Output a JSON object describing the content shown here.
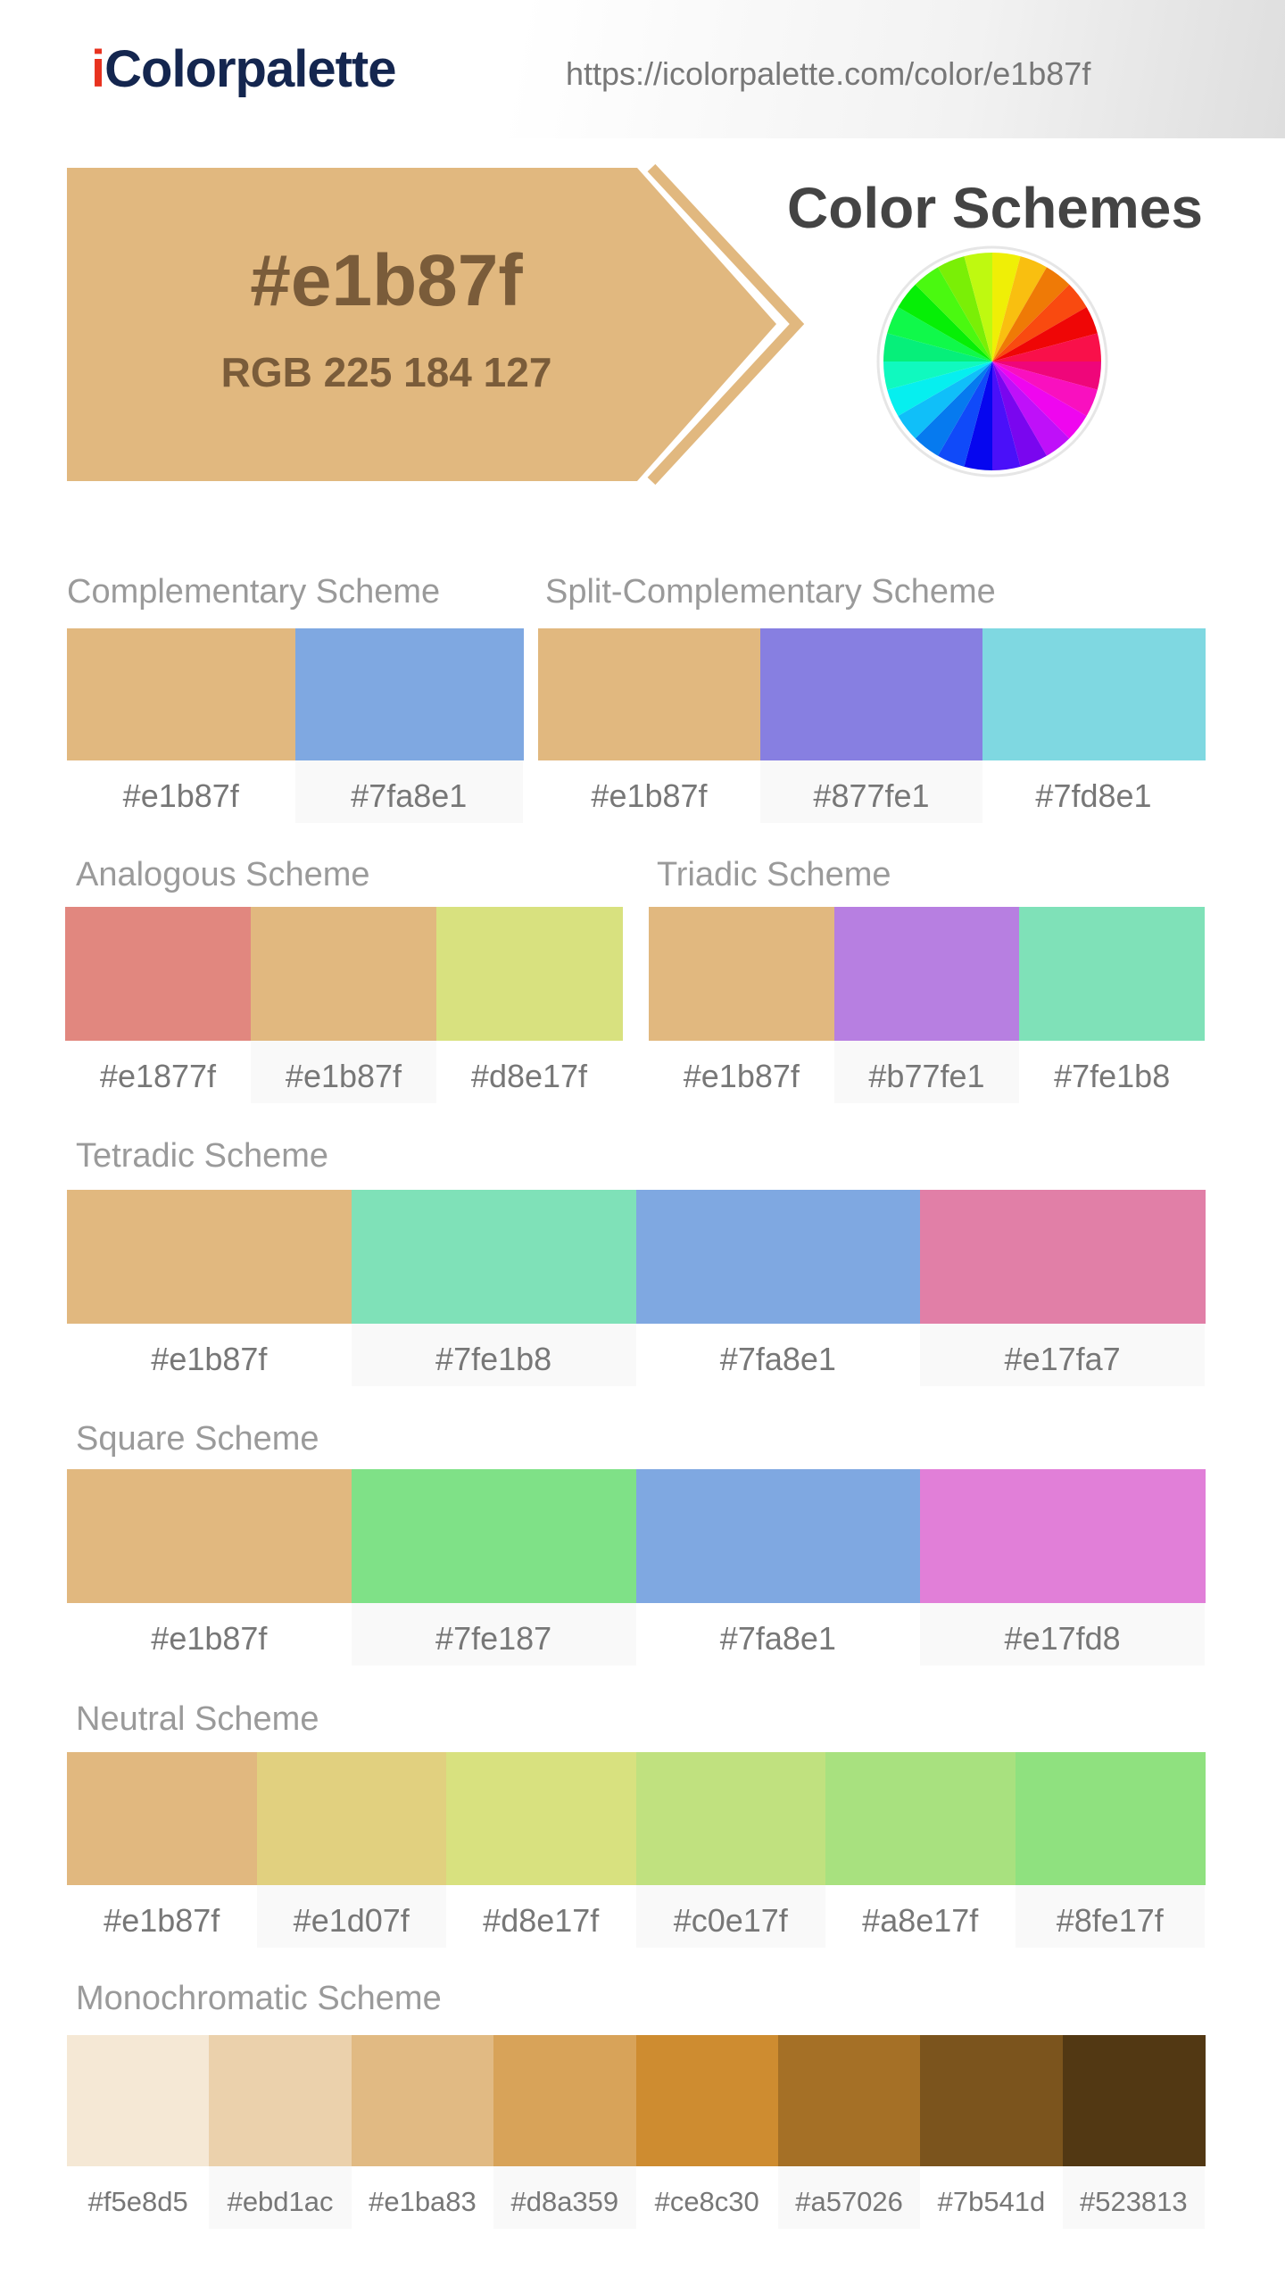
{
  "header": {
    "logo": "iColorpalette",
    "url": "https://icolorpalette.com/color/e1b87f"
  },
  "hero": {
    "hex": "#e1b87f",
    "rgb": "RGB 225 184 127",
    "title": "Color Schemes"
  },
  "schemes": [
    {
      "title": "Complementary Scheme",
      "colors": [
        "#e1b87f",
        "#7fa8e1"
      ]
    },
    {
      "title": "Split-Complementary Scheme",
      "colors": [
        "#e1b87f",
        "#877fe1",
        "#7fd8e1"
      ]
    },
    {
      "title": "Analogous Scheme",
      "colors": [
        "#e1877f",
        "#e1b87f",
        "#d8e17f"
      ]
    },
    {
      "title": "Triadic Scheme",
      "colors": [
        "#e1b87f",
        "#b77fe1",
        "#7fe1b8"
      ]
    },
    {
      "title": "Tetradic Scheme",
      "colors": [
        "#e1b87f",
        "#7fe1b8",
        "#7fa8e1",
        "#e17fa7"
      ]
    },
    {
      "title": "Square Scheme",
      "colors": [
        "#e1b87f",
        "#7fe187",
        "#7fa8e1",
        "#e17fd8"
      ]
    },
    {
      "title": "Neutral Scheme",
      "colors": [
        "#e1b87f",
        "#e1d07f",
        "#d8e17f",
        "#c0e17f",
        "#a8e17f",
        "#8fe17f"
      ]
    },
    {
      "title": "Monochromatic Scheme",
      "colors": [
        "#f5e8d5",
        "#ebd1ac",
        "#e1ba83",
        "#d8a359",
        "#ce8c30",
        "#a57026",
        "#7b541d",
        "#523813"
      ]
    }
  ]
}
